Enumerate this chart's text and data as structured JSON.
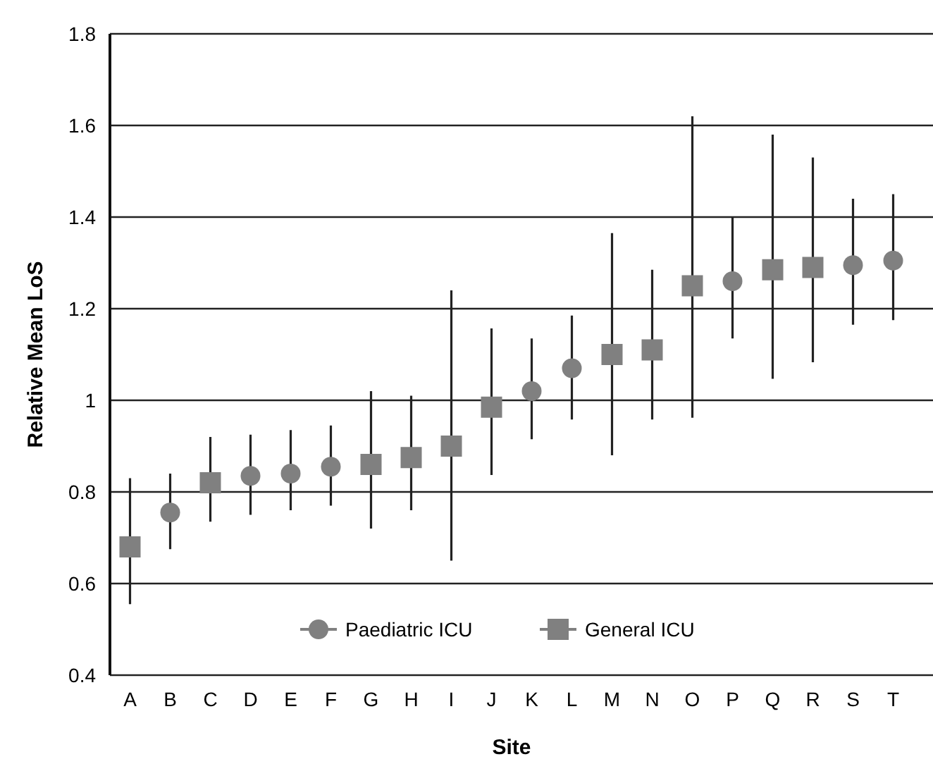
{
  "chart_data": {
    "type": "scatter",
    "xlabel": "Site",
    "ylabel": "Relative Mean LoS",
    "categories": [
      "A",
      "B",
      "C",
      "D",
      "E",
      "F",
      "G",
      "H",
      "I",
      "J",
      "K",
      "L",
      "M",
      "N",
      "O",
      "P",
      "Q",
      "R",
      "S",
      "T"
    ],
    "series": [
      {
        "name": "Paediatric ICU",
        "color": "#808080",
        "marker": "circle",
        "values": [
          null,
          0.755,
          null,
          0.835,
          0.84,
          0.855,
          null,
          null,
          null,
          null,
          1.02,
          1.07,
          null,
          null,
          null,
          1.26,
          null,
          null,
          1.295,
          1.305
        ],
        "errors": [
          null,
          [
            0.675,
            0.84
          ],
          null,
          [
            0.75,
            0.925
          ],
          [
            0.76,
            0.935
          ],
          [
            0.77,
            0.945
          ],
          null,
          null,
          null,
          null,
          [
            0.915,
            1.135
          ],
          [
            0.958,
            1.185
          ],
          null,
          null,
          null,
          [
            1.135,
            1.4
          ],
          null,
          null,
          [
            1.165,
            1.44
          ],
          [
            1.175,
            1.45
          ]
        ]
      },
      {
        "name": "General ICU",
        "color": "#808080",
        "marker": "square",
        "values": [
          0.68,
          null,
          0.82,
          null,
          null,
          null,
          0.86,
          0.875,
          0.9,
          0.985,
          null,
          null,
          1.1,
          1.11,
          1.25,
          null,
          1.285,
          1.29,
          null,
          null
        ],
        "errors": [
          [
            0.555,
            0.83
          ],
          null,
          [
            0.735,
            0.92
          ],
          null,
          null,
          null,
          [
            0.72,
            1.02
          ],
          [
            0.76,
            1.01
          ],
          [
            0.65,
            1.24
          ],
          [
            0.837,
            1.157
          ],
          null,
          null,
          [
            0.88,
            1.365
          ],
          [
            0.958,
            1.285
          ],
          [
            0.962,
            1.62
          ],
          null,
          [
            1.047,
            1.58
          ],
          [
            1.083,
            1.53
          ],
          null,
          null
        ]
      }
    ],
    "ylim": [
      0.4,
      1.8
    ],
    "yticks": [
      0.4,
      0.6,
      0.8,
      {
        "value": 1,
        "label": "1"
      },
      1.2,
      1.4,
      1.6,
      1.8
    ],
    "grid": "y",
    "legend": "bottom"
  }
}
